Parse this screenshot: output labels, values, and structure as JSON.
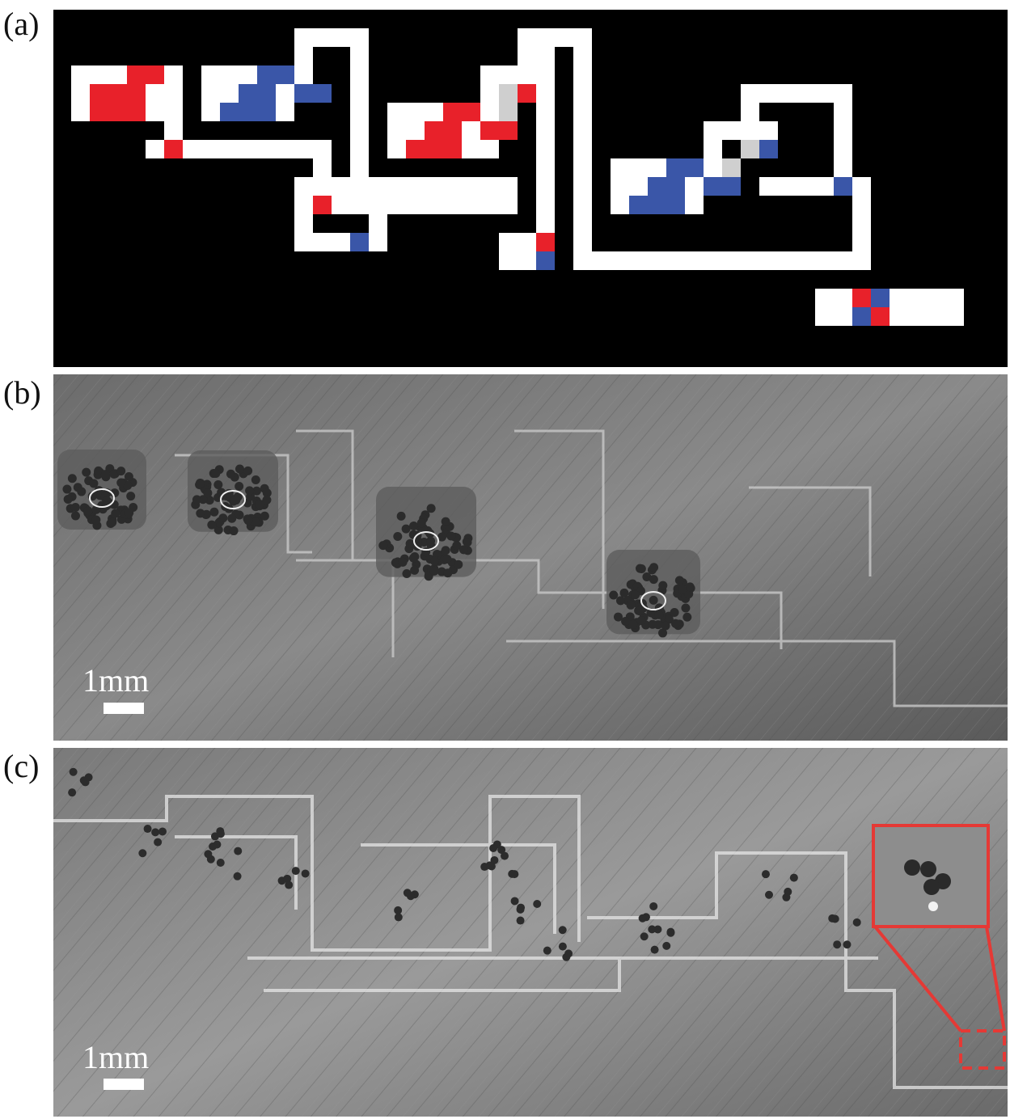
{
  "figure": {
    "panels": [
      {
        "label": "(a)",
        "description_kind": "pixel-grid schematic"
      },
      {
        "label": "(b)",
        "scale_bar": "1mm"
      },
      {
        "label": "(c)",
        "scale_bar": "1mm"
      }
    ]
  },
  "colors": {
    "background_grid": "#000000",
    "channel": "#ffffff",
    "fluid_red": "#e8212a",
    "fluid_blue": "#3a56a8",
    "gray_cell": "#cfcfcf",
    "zoom_box": "#e53935"
  }
}
